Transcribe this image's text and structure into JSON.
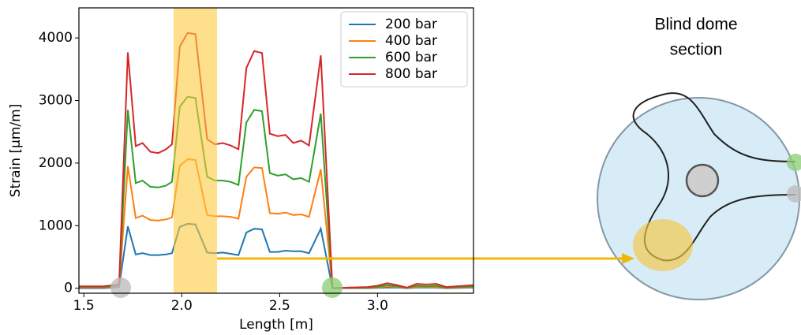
{
  "chart_data": {
    "type": "line",
    "xlabel": "Length [m]",
    "ylabel": "Strain [µm/m]",
    "x": [
      1.475,
      1.55,
      1.6,
      1.65,
      1.68,
      1.725,
      1.765,
      1.8,
      1.84,
      1.88,
      1.92,
      1.95,
      1.99,
      2.03,
      2.07,
      2.13,
      2.17,
      2.21,
      2.25,
      2.29,
      2.33,
      2.37,
      2.41,
      2.45,
      2.49,
      2.53,
      2.57,
      2.61,
      2.65,
      2.71,
      2.77,
      2.85,
      2.95,
      3.0,
      3.05,
      3.1,
      3.15,
      3.2,
      3.25,
      3.3,
      3.35,
      3.49
    ],
    "series": [
      {
        "name": "200 bar",
        "color": "#1f77b4",
        "values": [
          0,
          0,
          0,
          10,
          20,
          990,
          540,
          560,
          530,
          530,
          540,
          560,
          980,
          1030,
          1020,
          570,
          560,
          570,
          550,
          530,
          890,
          950,
          940,
          580,
          580,
          600,
          590,
          590,
          560,
          950,
          0,
          0,
          0,
          5,
          10,
          10,
          0,
          10,
          10,
          10,
          0,
          10
        ]
      },
      {
        "name": "400 bar",
        "color": "#ff7f0e",
        "values": [
          10,
          10,
          10,
          20,
          30,
          1950,
          1120,
          1160,
          1090,
          1080,
          1100,
          1130,
          1960,
          2060,
          2050,
          1170,
          1150,
          1150,
          1140,
          1110,
          1780,
          1930,
          1920,
          1200,
          1190,
          1210,
          1170,
          1180,
          1140,
          1900,
          0,
          5,
          5,
          10,
          30,
          20,
          5,
          20,
          20,
          20,
          5,
          20
        ]
      },
      {
        "name": "600 bar",
        "color": "#2ca02c",
        "values": [
          20,
          20,
          20,
          30,
          40,
          2850,
          1680,
          1720,
          1620,
          1610,
          1640,
          1700,
          2900,
          3060,
          3040,
          1780,
          1720,
          1720,
          1700,
          1650,
          2650,
          2850,
          2830,
          1840,
          1800,
          1820,
          1740,
          1760,
          1700,
          2790,
          0,
          10,
          10,
          20,
          50,
          30,
          10,
          40,
          30,
          40,
          10,
          30
        ]
      },
      {
        "name": "800 bar",
        "color": "#d62728",
        "values": [
          30,
          30,
          30,
          50,
          60,
          3770,
          2270,
          2320,
          2180,
          2160,
          2220,
          2300,
          3860,
          4080,
          4060,
          2380,
          2300,
          2320,
          2280,
          2220,
          3520,
          3790,
          3760,
          2470,
          2430,
          2450,
          2320,
          2360,
          2280,
          3720,
          0,
          10,
          20,
          40,
          80,
          50,
          10,
          70,
          60,
          70,
          20,
          50
        ]
      }
    ],
    "xlim": [
      1.475,
      3.49
    ],
    "xticks": [
      1.5,
      {
        "value": 2,
        "label": "2.0"
      },
      2.5,
      {
        "value": 3,
        "label": "3.0"
      }
    ],
    "ylim": [
      -80,
      4480
    ],
    "yticks": [
      0,
      1000,
      2000,
      3000,
      4000
    ],
    "grid": false,
    "legend": "upper right",
    "annotations": [
      "Blind dome",
      "section"
    ]
  }
}
